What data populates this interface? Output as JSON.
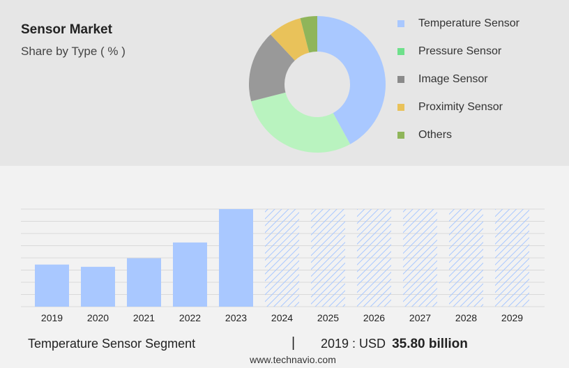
{
  "header": {
    "title": "Sensor Market",
    "subtitle": "Share by Type ( % )"
  },
  "colors": {
    "bar": "#a9c8ff",
    "hatch": "#a9c8ff",
    "grid": "#d9d9d9"
  },
  "chart_data": [
    {
      "type": "pie",
      "donut": true,
      "title": "Share by Type ( % )",
      "legend_position": "right",
      "slices": [
        {
          "name": "Temperature Sensor",
          "value": 42,
          "color": "#a9c8ff"
        },
        {
          "name": "Pressure Sensor",
          "value": 29,
          "color": "#b9f3bf"
        },
        {
          "name": "Image Sensor",
          "value": 17,
          "color": "#999999"
        },
        {
          "name": "Proximity Sensor",
          "value": 8,
          "color": "#e9c25a"
        },
        {
          "name": "Others",
          "value": 4,
          "color": "#8fb55a"
        }
      ],
      "legend_colors": [
        "#a9c8ff",
        "#6ee08b",
        "#8a8a8a",
        "#e9c25a",
        "#8fb55a"
      ]
    },
    {
      "type": "bar",
      "categories": [
        "2019",
        "2020",
        "2021",
        "2022",
        "2023",
        "2024",
        "2025",
        "2026",
        "2027",
        "2028",
        "2029"
      ],
      "values": [
        35.8,
        33.9,
        41.2,
        54.6,
        83.0,
        83.0,
        83.0,
        83.0,
        83.0,
        83.0,
        83.0
      ],
      "forecast_from_index": 5,
      "ylim": [
        0,
        83
      ],
      "grid": true,
      "gridlines": 9
    }
  ],
  "footer": {
    "segment_label": "Temperature Sensor Segment",
    "separator": "|",
    "year_label": "2019 : USD",
    "value_label": "35.80 billion",
    "website": "www.technavio.com"
  }
}
